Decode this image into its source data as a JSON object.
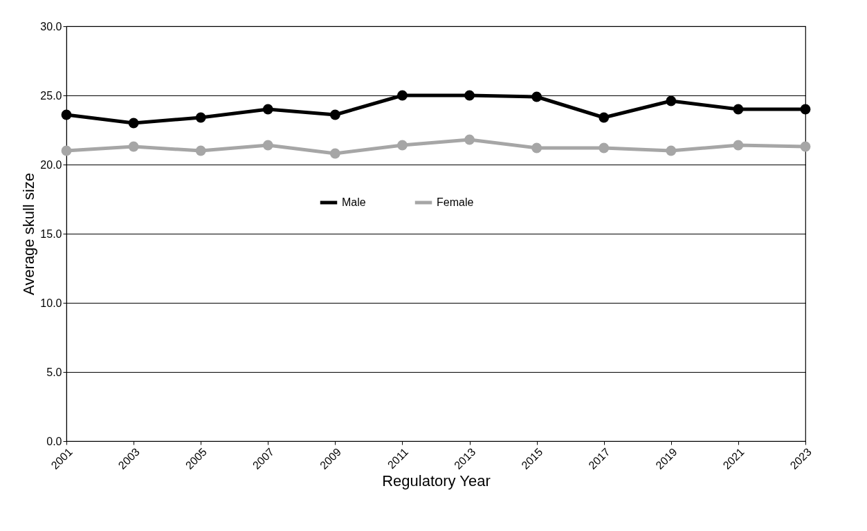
{
  "chart_data": {
    "type": "line",
    "xlabel": "Regulatory Year",
    "ylabel": "Average skull size",
    "x": [
      2001,
      2003,
      2005,
      2007,
      2009,
      2011,
      2013,
      2015,
      2017,
      2019,
      2021,
      2023
    ],
    "series": [
      {
        "name": "Male",
        "color": "#000000",
        "values": [
          23.6,
          23.0,
          23.4,
          24.0,
          23.6,
          25.0,
          25.0,
          24.9,
          23.4,
          24.6,
          24.0,
          24.0
        ]
      },
      {
        "name": "Female",
        "color": "#a6a6a6",
        "values": [
          21.0,
          21.3,
          21.0,
          21.4,
          20.8,
          21.4,
          21.8,
          21.2,
          21.2,
          21.0,
          21.4,
          21.3
        ]
      }
    ],
    "xlim": [
      2001,
      2023
    ],
    "xticks": [
      2001,
      2003,
      2005,
      2007,
      2009,
      2011,
      2013,
      2015,
      2017,
      2019,
      2021,
      2023
    ],
    "ylim": [
      0,
      30
    ],
    "yticks": [
      {
        "value": 0,
        "label": "0.0"
      },
      {
        "value": 5,
        "label": "5.0"
      },
      {
        "value": 10,
        "label": "10.0"
      },
      {
        "value": 15,
        "label": "15.0"
      },
      {
        "value": 20,
        "label": "20.0"
      },
      {
        "value": 25,
        "label": "25.0"
      },
      {
        "value": 30,
        "label": "30.0"
      }
    ],
    "grid": "y",
    "legend": "center",
    "marker": "circle",
    "line_style": "solid"
  }
}
